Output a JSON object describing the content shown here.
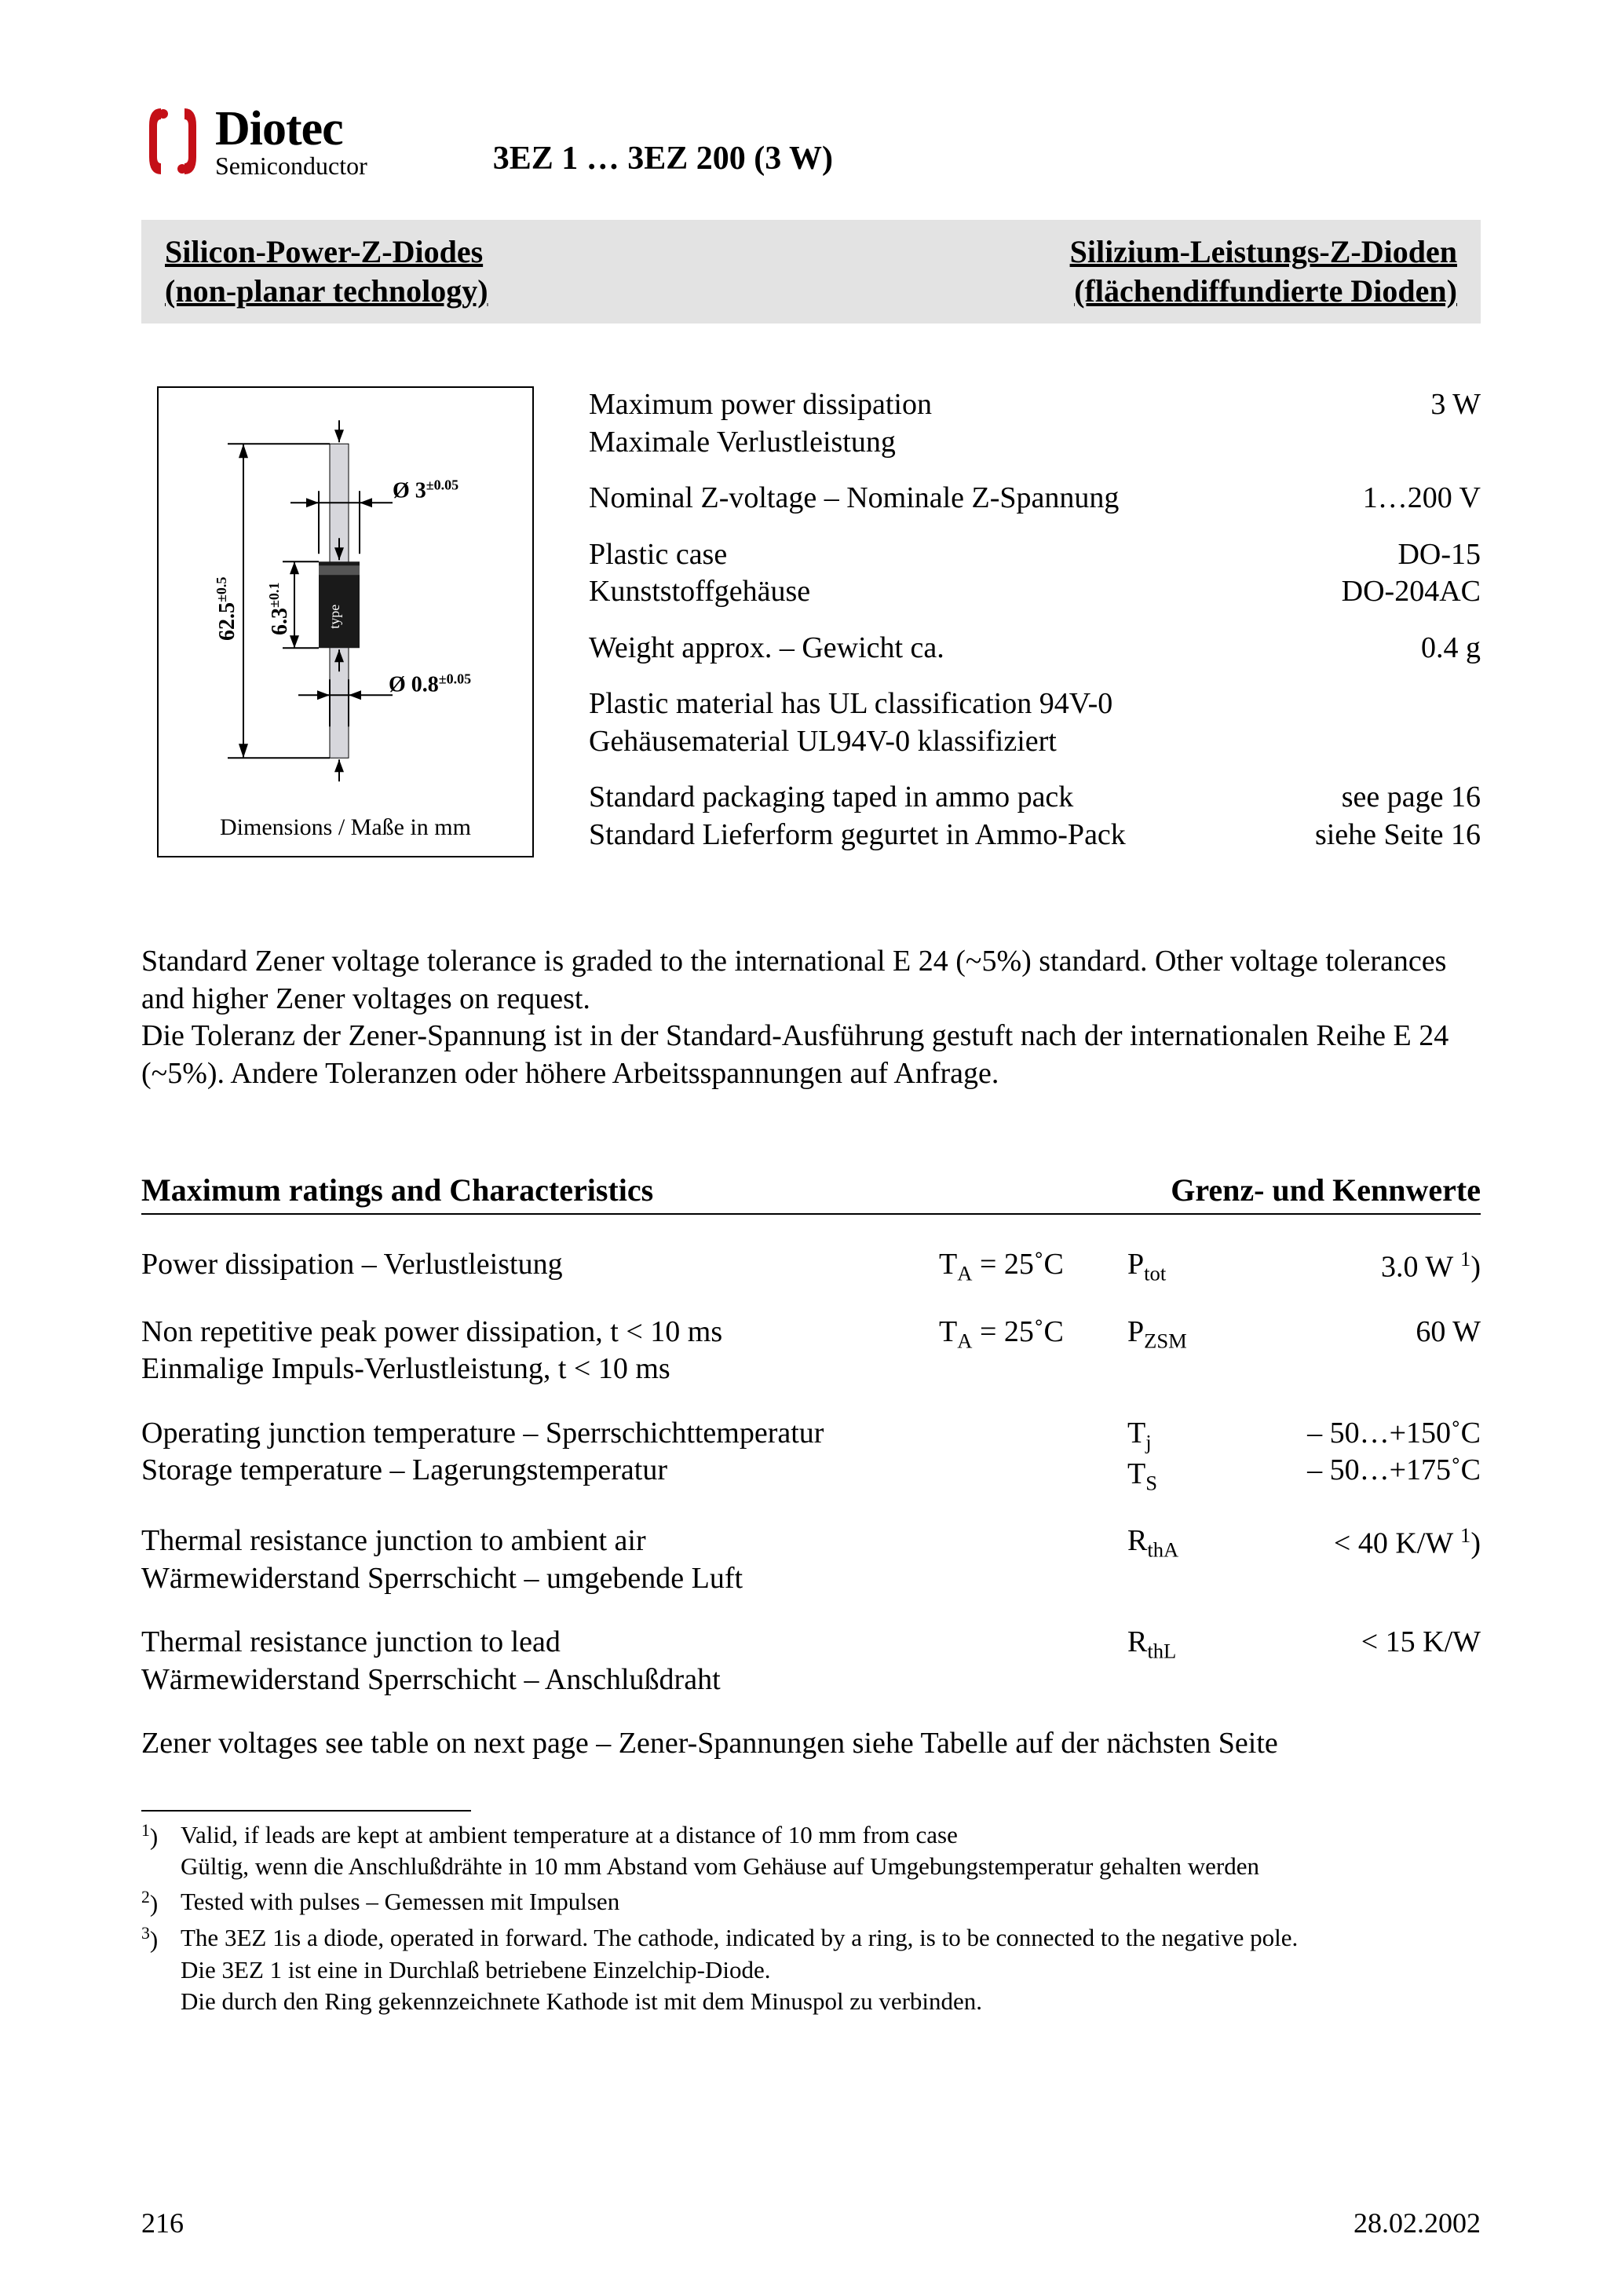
{
  "logo": {
    "brand": "Diotec",
    "sub": "Semiconductor",
    "color_red": "#c40f17"
  },
  "doc_title": "3EZ 1 … 3EZ 200 (3 W)",
  "title_bar": {
    "left_line1": "Silicon-Power-Z-Diodes",
    "left_line2": "(non-planar technology)",
    "right_line1": "Silizium-Leistungs-Z-Dioden",
    "right_line2": "(flächendiffundierte Dioden)"
  },
  "figure": {
    "caption": "Dimensions / Maße in mm",
    "dim_length": "62.5",
    "dim_length_tol": "±0.5",
    "dim_body": "6.3",
    "dim_body_tol": "±0.1",
    "dim_lead_dia": "Ø 0.8",
    "dim_lead_dia_tol": "±0.05",
    "dim_body_dia": "Ø 3",
    "dim_body_dia_tol": "±0.05",
    "type_label": "type"
  },
  "specs": [
    {
      "label_en": "Maximum power dissipation",
      "label_de": "Maximale Verlustleistung",
      "value": "3 W"
    },
    {
      "label_en": "Nominal Z-voltage – Nominale Z-Spannung",
      "label_de": "",
      "value": "1…200 V"
    },
    {
      "label_en": "Plastic case",
      "label_de": "Kunststoffgehäuse",
      "value": "DO-15",
      "value2": "DO-204AC"
    },
    {
      "label_en": "Weight approx. – Gewicht ca.",
      "label_de": "",
      "value": "0.4 g"
    },
    {
      "label_en": "Plastic material has UL classification 94V-0",
      "label_de": "Gehäusematerial UL94V-0 klassifiziert",
      "value": ""
    },
    {
      "label_en": "Standard packaging taped in ammo pack",
      "label_de": "Standard Lieferform gegurtet in Ammo-Pack",
      "value": "see page 16",
      "value2": "siehe Seite 16"
    }
  ],
  "tolerance_para": "Standard Zener voltage tolerance is graded to the international E 24 (~5%) standard. Other voltage tolerances and higher Zener voltages on request.\nDie Toleranz der Zener-Spannung ist in der Standard-Ausführung gestuft nach der internationalen Reihe E 24 (~5%). Andere Toleranzen oder höhere Arbeitsspannungen auf Anfrage.",
  "ratings_header": {
    "left": "Maximum ratings and Characteristics",
    "right": "Grenz- und Kennwerte"
  },
  "ratings": [
    {
      "label": "Power dissipation – Verlustleistung",
      "cond_html": "T<sub>A</sub> = 25˚C",
      "sym_html": "P<sub>tot</sub>",
      "val_html": "3.0 W <sup>1</sup>)"
    },
    {
      "label": "Non repetitive peak power dissipation, t < 10 ms\nEinmalige Impuls-Verlustleistung, t < 10 ms",
      "cond_html": "T<sub>A</sub> = 25˚C",
      "sym_html": "P<sub>ZSM</sub>",
      "val_html": "60 W"
    },
    {
      "label": "Operating junction temperature – Sperrschichttemperatur\nStorage temperature – Lagerungstemperatur",
      "cond_html": "",
      "sym_html": "T<sub>j</sub><br>T<sub>S</sub>",
      "val_html": "– 50…+150˚C<br>– 50…+175˚C"
    },
    {
      "label": "Thermal resistance junction to ambient air\nWärmewiderstand Sperrschicht – umgebende Luft",
      "cond_html": "",
      "sym_html": "R<sub>thA</sub>",
      "val_html": "< 40 K/W <sup>1</sup>)"
    },
    {
      "label": "Thermal resistance junction to lead\nWärmewiderstand Sperrschicht – Anschlußdraht",
      "cond_html": "",
      "sym_html": "R<sub>thL</sub>",
      "val_html": "< 15 K/W"
    }
  ],
  "after_ratings": "Zener voltages see table on next page – Zener-Spannungen siehe Tabelle auf der nächsten Seite",
  "footnotes": [
    {
      "mark": "1",
      "text": "Valid, if leads are kept at ambient temperature at a distance of 10 mm from case\nGültig, wenn die Anschlußdrähte in 10 mm Abstand vom Gehäuse auf Umgebungstemperatur gehalten werden"
    },
    {
      "mark": "2",
      "text": "Tested with pulses – Gemessen mit Impulsen"
    },
    {
      "mark": "3",
      "text": "The 3EZ 1is a diode, operated in forward. The cathode, indicated by a ring, is to be connected to the negative pole.\nDie 3EZ 1 ist eine in Durchlaß betriebene Einzelchip-Diode.\nDie durch den Ring gekennzeichnete Kathode ist mit dem Minuspol zu verbinden."
    }
  ],
  "page_number": "216",
  "page_date": "28.02.2002",
  "colors": {
    "bg": "#ffffff",
    "text": "#000000",
    "titlebar_bg": "#e3e3e3",
    "logo_red": "#c40f17"
  }
}
